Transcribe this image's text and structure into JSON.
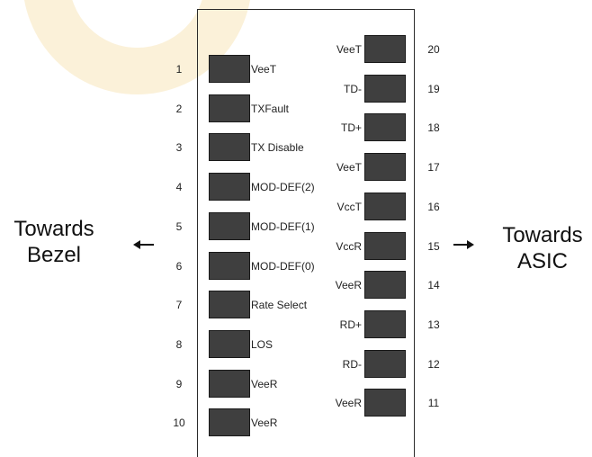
{
  "left_side": {
    "line1": "Towards",
    "line2": "Bezel"
  },
  "right_side": {
    "line1": "Towards",
    "line2": "ASIC"
  },
  "left_pins": [
    {
      "number": "1",
      "signal": "VeeT"
    },
    {
      "number": "2",
      "signal": "TXFault"
    },
    {
      "number": "3",
      "signal": "TX Disable"
    },
    {
      "number": "4",
      "signal": "MOD-DEF(2)"
    },
    {
      "number": "5",
      "signal": "MOD-DEF(1)"
    },
    {
      "number": "6",
      "signal": "MOD-DEF(0)"
    },
    {
      "number": "7",
      "signal": "Rate Select"
    },
    {
      "number": "8",
      "signal": "LOS"
    },
    {
      "number": "9",
      "signal": "VeeR"
    },
    {
      "number": "10",
      "signal": "VeeR"
    }
  ],
  "right_pins": [
    {
      "number": "20",
      "signal": "VeeT"
    },
    {
      "number": "19",
      "signal": "TD-"
    },
    {
      "number": "18",
      "signal": "TD+"
    },
    {
      "number": "17",
      "signal": "VeeT"
    },
    {
      "number": "16",
      "signal": "VccT"
    },
    {
      "number": "15",
      "signal": "VccR"
    },
    {
      "number": "14",
      "signal": "VeeR"
    },
    {
      "number": "13",
      "signal": "RD+"
    },
    {
      "number": "12",
      "signal": "RD-"
    },
    {
      "number": "11",
      "signal": "VeeR"
    }
  ],
  "colors": {
    "pad_fill": "#3f3f3f",
    "outline": "#2b2b2b",
    "watermark": "#fbf1d9"
  }
}
